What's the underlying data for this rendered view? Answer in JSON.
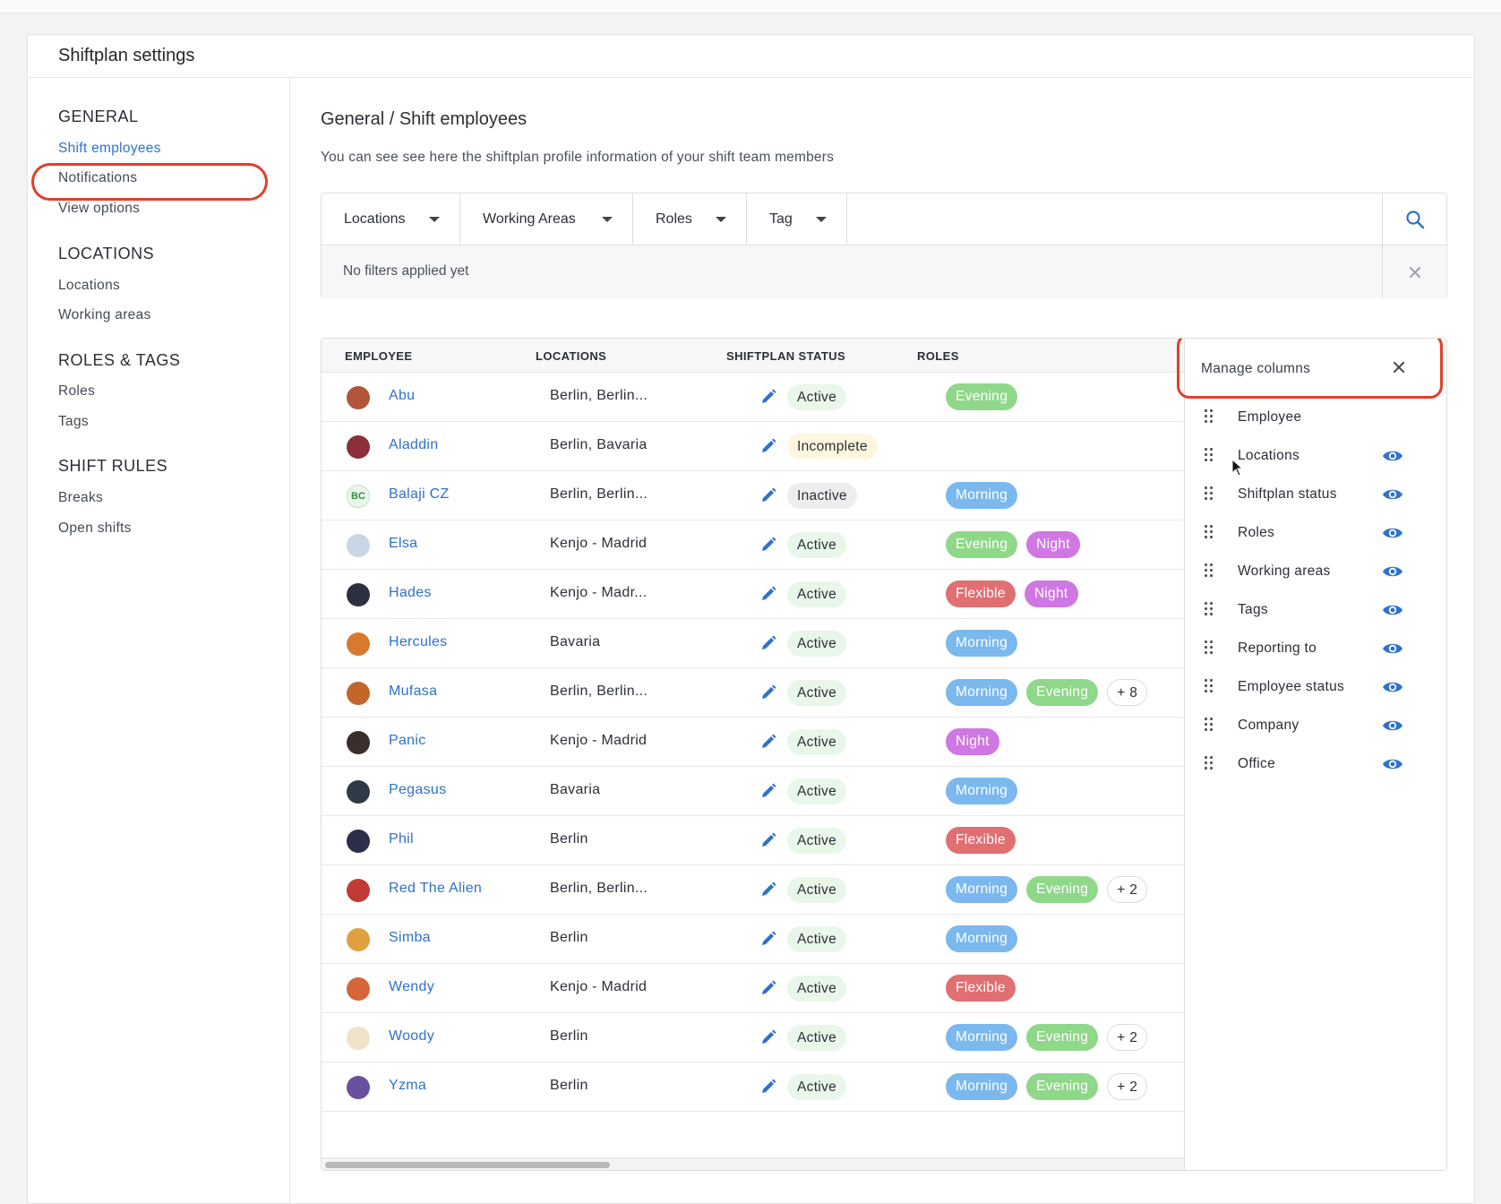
{
  "page": {
    "title": "Shiftplan settings"
  },
  "sidebar": {
    "sections": [
      {
        "title": "GENERAL",
        "items": [
          "Shift employees",
          "Notifications",
          "View options"
        ]
      },
      {
        "title": "LOCATIONS",
        "items": [
          "Locations",
          "Working areas"
        ]
      },
      {
        "title": "ROLES & TAGS",
        "items": [
          "Roles",
          "Tags"
        ]
      },
      {
        "title": "SHIFT RULES",
        "items": [
          "Breaks",
          "Open shifts"
        ]
      }
    ],
    "active_item": "Shift employees"
  },
  "main": {
    "breadcrumb": "General / Shift employees",
    "description": "You can see see here the shiftplan profile information of your shift team members",
    "filters": {
      "dropdowns": [
        "Locations",
        "Working Areas",
        "Roles",
        "Tag"
      ],
      "status": "No filters applied yet",
      "search_icon": "search-icon",
      "clear_icon": "close-icon"
    },
    "table": {
      "columns": [
        "EMPLOYEE",
        "LOCATIONS",
        "SHIFTPLAN STATUS",
        "ROLES"
      ],
      "rows": [
        {
          "name": "Abu",
          "locations": "Berlin, Berlin...",
          "status": "Active",
          "roles": [
            "Evening"
          ],
          "more": ""
        },
        {
          "name": "Aladdin",
          "locations": "Berlin, Bavaria",
          "status": "Incomplete",
          "roles": [],
          "more": ""
        },
        {
          "name": "Balaji CZ",
          "avatar_text": "BC",
          "locations": "Berlin, Berlin...",
          "status": "Inactive",
          "roles": [
            "Morning"
          ],
          "more": ""
        },
        {
          "name": "Elsa",
          "locations": "Kenjo - Madrid",
          "status": "Active",
          "roles": [
            "Evening",
            "Night"
          ],
          "more": ""
        },
        {
          "name": "Hades",
          "locations": "Kenjo - Madr...",
          "status": "Active",
          "roles": [
            "Flexible",
            "Night"
          ],
          "more": ""
        },
        {
          "name": "Hercules",
          "locations": "Bavaria",
          "status": "Active",
          "roles": [
            "Morning"
          ],
          "more": ""
        },
        {
          "name": "Mufasa",
          "locations": "Berlin, Berlin...",
          "status": "Active",
          "roles": [
            "Morning",
            "Evening"
          ],
          "more": "+ 8"
        },
        {
          "name": "Panic",
          "locations": "Kenjo - Madrid",
          "status": "Active",
          "roles": [
            "Night"
          ],
          "more": ""
        },
        {
          "name": "Pegasus",
          "locations": "Bavaria",
          "status": "Active",
          "roles": [
            "Morning"
          ],
          "more": ""
        },
        {
          "name": "Phil",
          "locations": "Berlin",
          "status": "Active",
          "roles": [
            "Flexible"
          ],
          "more": ""
        },
        {
          "name": "Red The Alien",
          "locations": "Berlin, Berlin...",
          "status": "Active",
          "roles": [
            "Morning",
            "Evening"
          ],
          "more": "+ 2"
        },
        {
          "name": "Simba",
          "locations": "Berlin",
          "status": "Active",
          "roles": [
            "Morning"
          ],
          "more": ""
        },
        {
          "name": "Wendy",
          "locations": "Kenjo - Madrid",
          "status": "Active",
          "roles": [
            "Flexible"
          ],
          "more": ""
        },
        {
          "name": "Woody",
          "locations": "Berlin",
          "status": "Active",
          "roles": [
            "Morning",
            "Evening"
          ],
          "more": "+ 2"
        },
        {
          "name": "Yzma",
          "locations": "Berlin",
          "status": "Active",
          "roles": [
            "Morning",
            "Evening"
          ],
          "more": "+ 2"
        }
      ]
    },
    "manage_columns": {
      "title": "Manage columns",
      "items": [
        {
          "label": "Employee",
          "visible_icon": false
        },
        {
          "label": "Locations",
          "visible_icon": true
        },
        {
          "label": "Shiftplan status",
          "visible_icon": true
        },
        {
          "label": "Roles",
          "visible_icon": true
        },
        {
          "label": "Working areas",
          "visible_icon": true
        },
        {
          "label": "Tags",
          "visible_icon": true
        },
        {
          "label": "Reporting to",
          "visible_icon": true
        },
        {
          "label": "Employee status",
          "visible_icon": true
        },
        {
          "label": "Company",
          "visible_icon": true
        },
        {
          "label": "Office",
          "visible_icon": true
        }
      ]
    }
  },
  "colors": {
    "accent": "#2e72c9",
    "highlight": "#e0402b",
    "role_evening": "#8fd88a",
    "role_morning": "#7ab8ee",
    "role_night": "#cf77e2",
    "role_flexible": "#e06f72"
  },
  "avatar_colors": [
    "#b3553a",
    "#8b2f3b",
    "#e9f7ea",
    "#c9d6e6",
    "#2d3040",
    "#d8792f",
    "#c4652a",
    "#3a2e2a",
    "#2e3a46",
    "#2a2f4a",
    "#c23a36",
    "#e0a040",
    "#d4663a",
    "#efe2c8",
    "#6b4fa0"
  ]
}
